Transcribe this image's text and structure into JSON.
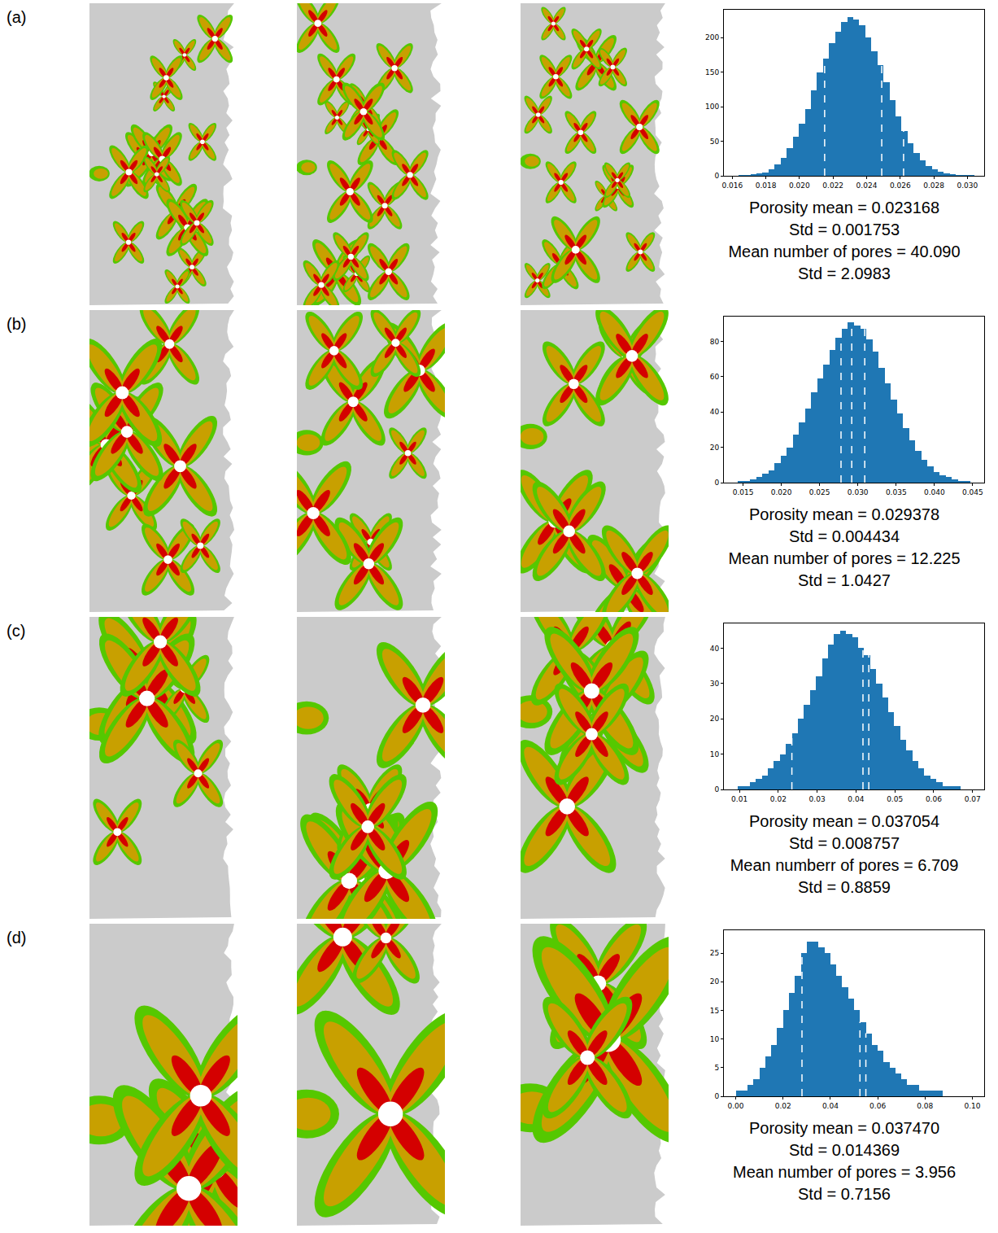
{
  "chart_data": [
    {
      "type": "histogram",
      "panel": "(a)",
      "color": "#1f77b4",
      "bins": [
        0.016,
        0.01636,
        0.01672,
        0.01708,
        0.01744,
        0.0178,
        0.01816,
        0.01852,
        0.01888,
        0.01924,
        0.0196,
        0.01996,
        0.02032,
        0.02068,
        0.02104,
        0.0214,
        0.02176,
        0.02212,
        0.02248,
        0.02284,
        0.0232,
        0.02356,
        0.02392,
        0.02428,
        0.02464,
        0.025,
        0.02536,
        0.02572,
        0.02608,
        0.02644,
        0.0268,
        0.02716,
        0.02752,
        0.02788,
        0.02824,
        0.0286,
        0.02896,
        0.02932,
        0.02968,
        0.03004,
        0.0304
      ],
      "counts": [
        0,
        1,
        1,
        2,
        3,
        5,
        10,
        17,
        26,
        40,
        56,
        75,
        97,
        124,
        150,
        170,
        192,
        208,
        222,
        229,
        226,
        218,
        200,
        180,
        160,
        135,
        110,
        86,
        65,
        47,
        33,
        22,
        14,
        9,
        6,
        4,
        2,
        1,
        1,
        1
      ],
      "xlim": [
        0.0155,
        0.031
      ],
      "ylim": [
        0,
        240
      ],
      "xticks": [
        0.016,
        0.018,
        {
          "value": 0.02,
          "label": "0.020"
        },
        0.022,
        0.024,
        0.026,
        0.028,
        {
          "value": 0.03,
          "label": "0.030"
        }
      ],
      "yticks": [
        0,
        50,
        100,
        150,
        200
      ],
      "vlines": {
        "values": [
          0.0215,
          0.0249,
          0.0262
        ],
        "color": "#ffffff",
        "line_style": "dashed"
      },
      "annotations": [
        "Porosity mean = 0.023168",
        "Std = 0.001753",
        "Mean number of pores = 40.090",
        "Std = 2.0983"
      ]
    },
    {
      "type": "histogram",
      "panel": "(b)",
      "color": "#1f77b4",
      "bins": [
        0.0135,
        0.0143,
        0.0151,
        0.0159,
        0.0167,
        0.0175,
        0.0183,
        0.0191,
        0.0199,
        0.0207,
        0.0215,
        0.0223,
        0.0231,
        0.0239,
        0.0247,
        0.0255,
        0.0263,
        0.0271,
        0.0279,
        0.0287,
        0.0295,
        0.0303,
        0.0311,
        0.0319,
        0.0327,
        0.0335,
        0.0343,
        0.0351,
        0.0359,
        0.0367,
        0.0375,
        0.0383,
        0.0391,
        0.0399,
        0.0407,
        0.0415,
        0.0423,
        0.0431,
        0.0439,
        0.0447,
        0.0455
      ],
      "counts": [
        0,
        1,
        1,
        2,
        3,
        5,
        7,
        11,
        15,
        20,
        27,
        34,
        42,
        51,
        59,
        67,
        75,
        82,
        87,
        91,
        89,
        87,
        81,
        74,
        65,
        56,
        47,
        39,
        31,
        24,
        18,
        13,
        9,
        6,
        4,
        3,
        2,
        1,
        1,
        0
      ],
      "xlim": [
        0.0125,
        0.0465
      ],
      "ylim": [
        0,
        94
      ],
      "xticks": [
        0.015,
        {
          "value": 0.02,
          "label": "0.020"
        },
        0.025,
        {
          "value": 0.03,
          "label": "0.030"
        },
        0.035,
        {
          "value": 0.04,
          "label": "0.040"
        },
        0.045
      ],
      "yticks": [
        0,
        20,
        40,
        60,
        80
      ],
      "vlines": {
        "values": [
          0.0278,
          0.0292,
          0.0309
        ],
        "color": "#ffffff",
        "line_style": "dashed"
      },
      "annotations": [
        "Porosity mean = 0.029378",
        "Std = 0.004434",
        "Mean number of pores = 12.225",
        "Std = 1.0427"
      ]
    },
    {
      "type": "histogram",
      "panel": "(c)",
      "color": "#1f77b4",
      "bins": [
        0.008,
        0.00955,
        0.0111,
        0.01265,
        0.0142,
        0.01575,
        0.0173,
        0.01885,
        0.0204,
        0.02195,
        0.0235,
        0.02505,
        0.0266,
        0.02815,
        0.0297,
        0.03125,
        0.0328,
        0.03435,
        0.0359,
        0.03745,
        0.039,
        0.04055,
        0.0421,
        0.04365,
        0.0452,
        0.04675,
        0.0483,
        0.04985,
        0.0514,
        0.05295,
        0.0545,
        0.05605,
        0.0576,
        0.05915,
        0.0607,
        0.06225,
        0.0638,
        0.06535,
        0.0669,
        0.06845,
        0.07
      ],
      "counts": [
        0,
        1,
        1,
        2,
        3,
        4,
        6,
        8,
        10,
        13,
        16,
        20,
        24,
        28,
        32,
        37,
        41,
        44,
        45,
        44,
        43,
        40,
        38,
        34,
        30,
        26,
        22,
        18,
        14,
        11,
        8,
        6,
        4,
        3,
        2,
        1,
        1,
        1,
        0,
        0
      ],
      "xlim": [
        0.006,
        0.073
      ],
      "ylim": [
        0,
        47
      ],
      "xticks": [
        0.01,
        0.02,
        0.03,
        0.04,
        0.05,
        0.06,
        0.07
      ],
      "yticks": [
        0,
        10,
        20,
        30,
        40
      ],
      "vlines": {
        "values": [
          0.0235,
          0.0418,
          0.0433
        ],
        "color": "#ffffff",
        "line_style": "dashed"
      },
      "annotations": [
        "Porosity mean = 0.037054",
        "Std = 0.008757",
        "Mean numberr of pores = 6.709",
        "Std = 0.8859"
      ]
    },
    {
      "type": "histogram",
      "panel": "(d)",
      "color": "#1f77b4",
      "bins": [
        0,
        0.0025,
        0.005,
        0.0075,
        0.01,
        0.0125,
        0.015,
        0.0175,
        0.02,
        0.0225,
        0.025,
        0.0275,
        0.03,
        0.0325,
        0.035,
        0.0375,
        0.04,
        0.0425,
        0.045,
        0.0475,
        0.05,
        0.0525,
        0.055,
        0.0575,
        0.06,
        0.0625,
        0.065,
        0.0675,
        0.07,
        0.0725,
        0.075,
        0.0775,
        0.08,
        0.0825,
        0.085,
        0.0875,
        0.09,
        0.0925,
        0.095,
        0.0975,
        0.1
      ],
      "counts": [
        1,
        1,
        2,
        3,
        5,
        7,
        9,
        12,
        15,
        18,
        21,
        25,
        27,
        27,
        26,
        25,
        23,
        21,
        19,
        17,
        15,
        13,
        11,
        9,
        8,
        6,
        5,
        4,
        3,
        2,
        2,
        1,
        1,
        1,
        1,
        0,
        0,
        0,
        0,
        0
      ],
      "xlim": [
        -0.005,
        0.105
      ],
      "ylim": [
        0,
        29
      ],
      "xticks": [
        {
          "value": 0,
          "label": "0.00"
        },
        0.02,
        0.04,
        0.06,
        0.08,
        {
          "value": 0.1,
          "label": "0.10"
        }
      ],
      "yticks": [
        0,
        5,
        10,
        15,
        20,
        25
      ],
      "vlines": {
        "values": [
          0.028,
          0.0525,
          0.055
        ],
        "color": "#ffffff",
        "line_style": "dashed"
      },
      "annotations": [
        "Porosity mean = 0.037470",
        "Std = 0.014369",
        "Mean number of pores = 3.956",
        "Std = 0.7156"
      ]
    }
  ]
}
